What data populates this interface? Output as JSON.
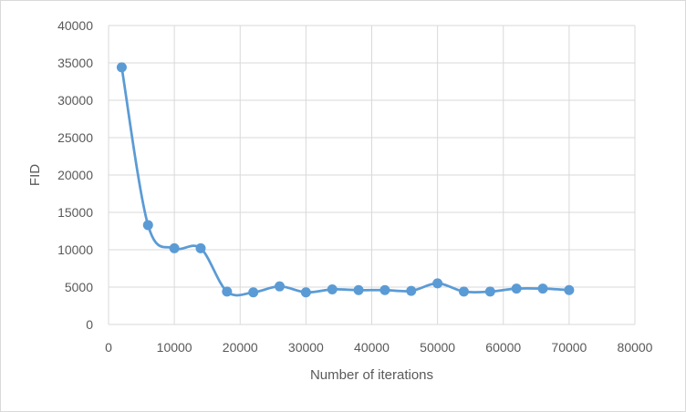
{
  "chart_data": {
    "type": "scatter",
    "xlabel": "Number of iterations",
    "ylabel": "FID",
    "xlim": [
      0,
      80000
    ],
    "ylim": [
      0,
      40000
    ],
    "x_ticks": [
      "0",
      "10000",
      "20000",
      "30000",
      "40000",
      "50000",
      "60000",
      "70000",
      "80000"
    ],
    "y_ticks": [
      "0",
      "5000",
      "10000",
      "15000",
      "20000",
      "25000",
      "30000",
      "35000",
      "40000"
    ],
    "x_tick_values": [
      0,
      10000,
      20000,
      30000,
      40000,
      50000,
      60000,
      70000,
      80000
    ],
    "y_tick_values": [
      0,
      5000,
      10000,
      15000,
      20000,
      25000,
      30000,
      35000,
      40000
    ],
    "grid": true,
    "smooth_line": true,
    "series": [
      {
        "color": "#5b9bd5",
        "points": [
          [
            2000,
            34400
          ],
          [
            6000,
            13300
          ],
          [
            10000,
            10200
          ],
          [
            14000,
            10200
          ],
          [
            18000,
            4400
          ],
          [
            22000,
            4300
          ],
          [
            26000,
            5100
          ],
          [
            30000,
            4300
          ],
          [
            34000,
            4700
          ],
          [
            38000,
            4600
          ],
          [
            42000,
            4600
          ],
          [
            46000,
            4500
          ],
          [
            50000,
            5500
          ],
          [
            54000,
            4400
          ],
          [
            58000,
            4400
          ],
          [
            62000,
            4800
          ],
          [
            66000,
            4800
          ],
          [
            70000,
            4600
          ]
        ]
      }
    ]
  }
}
